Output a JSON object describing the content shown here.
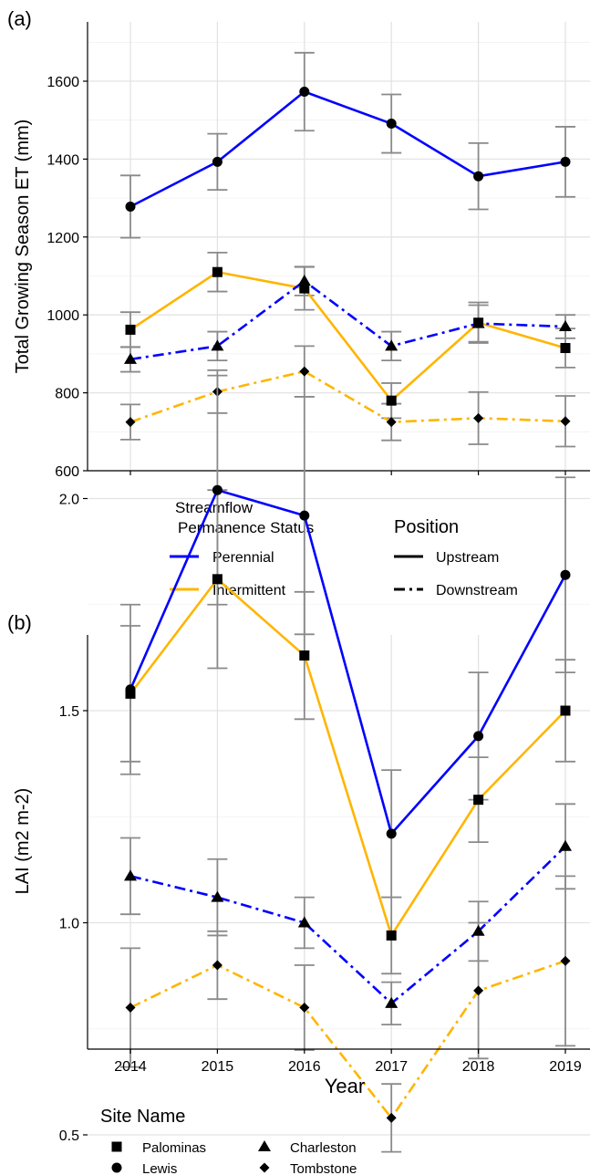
{
  "chart_data": [
    {
      "type": "line",
      "panel_label": "(a)",
      "ylabel": "Total Growing Season ET (mm)",
      "xlabel": "",
      "x": [
        2014,
        2015,
        2016,
        2017,
        2018,
        2019
      ],
      "x_tick_labels": [
        "",
        "",
        "",
        "",
        "",
        ""
      ],
      "y_ticks": [
        600,
        800,
        1000,
        1200,
        1400,
        1600
      ],
      "ylim": [
        585,
        1760
      ],
      "grid": true,
      "series": [
        {
          "color": "#0000ff",
          "dash": "solid",
          "marker": "circle",
          "values": [
            1278,
            1393,
            1573,
            1491,
            1356,
            1393
          ],
          "errors": [
            80,
            72,
            100,
            75,
            85,
            90
          ]
        },
        {
          "color": "#ffb500",
          "dash": "solid",
          "marker": "square",
          "values": [
            962,
            1110,
            1068,
            780,
            980,
            915
          ],
          "errors": [
            45,
            50,
            55,
            45,
            52,
            50
          ]
        },
        {
          "color": "#0000ff",
          "dash": "dashdot",
          "marker": "triangle",
          "values": [
            886,
            920,
            1087,
            920,
            978,
            970
          ],
          "errors": [
            32,
            37,
            37,
            37,
            47,
            30
          ]
        },
        {
          "color": "#ffb500",
          "dash": "dashdot",
          "marker": "diamond",
          "values": [
            725,
            803,
            855,
            725,
            735,
            727
          ],
          "errors": [
            45,
            55,
            65,
            47,
            67,
            65
          ]
        }
      ]
    },
    {
      "type": "line",
      "panel_label": "(b)",
      "ylabel": "LAI (m2 m-2)",
      "xlabel": "Year",
      "x": [
        2014,
        2015,
        2016,
        2017,
        2018,
        2019
      ],
      "x_tick_labels": [
        "2014",
        "2015",
        "2016",
        "2017",
        "2018",
        "2019"
      ],
      "y_ticks": [
        0.5,
        1.0,
        1.5,
        2.0
      ],
      "y_tick_labels": [
        "0.5",
        "1.0",
        "1.5",
        "2.0"
      ],
      "ylim": [
        0.39,
        2.41
      ],
      "grid": true,
      "series": [
        {
          "color": "#0000ff",
          "dash": "solid",
          "marker": "circle",
          "values": [
            1.55,
            2.02,
            1.96,
            1.21,
            1.44,
            1.82
          ],
          "errors": [
            0.2,
            0.27,
            0.28,
            0.15,
            0.15,
            0.23
          ]
        },
        {
          "color": "#ffb500",
          "dash": "solid",
          "marker": "square",
          "values": [
            1.54,
            1.81,
            1.63,
            0.97,
            1.29,
            1.5
          ],
          "errors": [
            0.16,
            0.21,
            0.15,
            0.09,
            0.1,
            0.12
          ]
        },
        {
          "color": "#0000ff",
          "dash": "dashdot",
          "marker": "triangle",
          "values": [
            1.11,
            1.06,
            1.0,
            0.81,
            0.98,
            1.18
          ],
          "errors": [
            0.09,
            0.09,
            0.06,
            0.05,
            0.07,
            0.1
          ]
        },
        {
          "color": "#ffb500",
          "dash": "dashdot",
          "marker": "diamond",
          "values": [
            0.8,
            0.9,
            0.8,
            0.54,
            0.84,
            0.91
          ],
          "errors": [
            0.14,
            0.08,
            0.1,
            0.08,
            0.16,
            0.2
          ]
        }
      ]
    }
  ],
  "legend_status": {
    "title_line1": "Streamflow",
    "title_line2": "Permanence Status",
    "items": [
      {
        "label": "Perennial",
        "color": "#0000ff"
      },
      {
        "label": "Intermittent",
        "color": "#ffb500"
      }
    ]
  },
  "legend_position": {
    "title": "Position",
    "items": [
      {
        "label": "Upstream",
        "dash": "solid"
      },
      {
        "label": "Downstream",
        "dash": "dashdot"
      }
    ]
  },
  "legend_site": {
    "title": "Site Name",
    "items": [
      {
        "label": "Palominas",
        "marker": "square"
      },
      {
        "label": "Charleston",
        "marker": "triangle"
      },
      {
        "label": "Lewis",
        "marker": "circle"
      },
      {
        "label": "Tombstone",
        "marker": "diamond"
      }
    ]
  }
}
